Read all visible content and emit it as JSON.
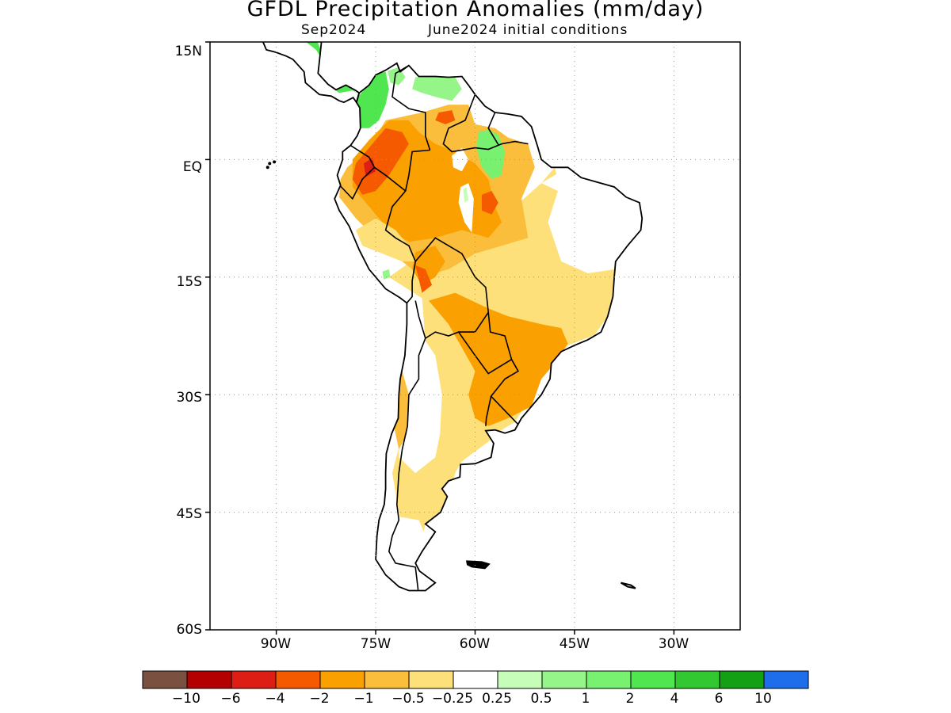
{
  "title": "GFDL Precipitation Anomalies (mm/day)",
  "subtitle_left": "Sep2024",
  "subtitle_right": "June2024 initial conditions",
  "lat_labels": [
    "15N",
    "EQ",
    "15S",
    "30S",
    "45S",
    "60S"
  ],
  "lon_labels": [
    "90W",
    "75W",
    "60W",
    "45W",
    "30W"
  ],
  "colorbar": {
    "labels": [
      "−10",
      "−6",
      "−4",
      "−2",
      "−1",
      "−0.5",
      "−0.25",
      "0.25",
      "0.5",
      "1",
      "2",
      "4",
      "6",
      "10"
    ],
    "colors": [
      "#7a5040",
      "#b40000",
      "#dc1e14",
      "#f55a00",
      "#faa000",
      "#fbbe3c",
      "#fde07a",
      "#ffffff",
      "#c6fdb8",
      "#96f588",
      "#78f070",
      "#50e650",
      "#32c832",
      "#14a014",
      "#1e6eeb"
    ]
  },
  "chart_data": {
    "type": "map",
    "variable": "Precipitation anomaly",
    "units": "mm/day",
    "lon_range": [
      -100,
      -20
    ],
    "lat_range": [
      -60,
      15
    ],
    "grid": true,
    "regions": [
      {
        "area": "Central America / Panama",
        "category": "+1 to +4",
        "color": "#50e650"
      },
      {
        "area": "Western Colombia",
        "category": "+1 to +4",
        "color": "#50e650"
      },
      {
        "area": "Northern Venezuela coast",
        "category": "+0.5 to +2",
        "color": "#96f588"
      },
      {
        "area": "Guyana / northern Brazil",
        "category": "+1 to +4",
        "color": "#78f070"
      },
      {
        "area": "Southern Colombia / Ecuador / northern Peru",
        "category": "-2 to -6",
        "color": "#f55a00"
      },
      {
        "area": "Western Amazon",
        "category": "-1 to -2",
        "color": "#faa000"
      },
      {
        "area": "Central Amazon",
        "category": "-2 to -4",
        "color": "#f55a00"
      },
      {
        "area": "Bolivia / Mato Grosso",
        "category": "-0.5 to -2",
        "color": "#fbbe3c"
      },
      {
        "area": "Paraguay / southern Brazil",
        "category": "-1 to -2",
        "color": "#faa000"
      },
      {
        "area": "Eastern Brazil",
        "category": "-0.25 to -1",
        "color": "#fde07a"
      },
      {
        "area": "Northeast Brazil",
        "category": "-0.25 to 0.25",
        "color": "#ffffff"
      },
      {
        "area": "Northern Argentina / Uruguay",
        "category": "-0.5 to -2",
        "color": "#fbbe3c"
      },
      {
        "area": "Patagonia",
        "category": "-0.25 to -1",
        "color": "#fde07a"
      }
    ]
  }
}
